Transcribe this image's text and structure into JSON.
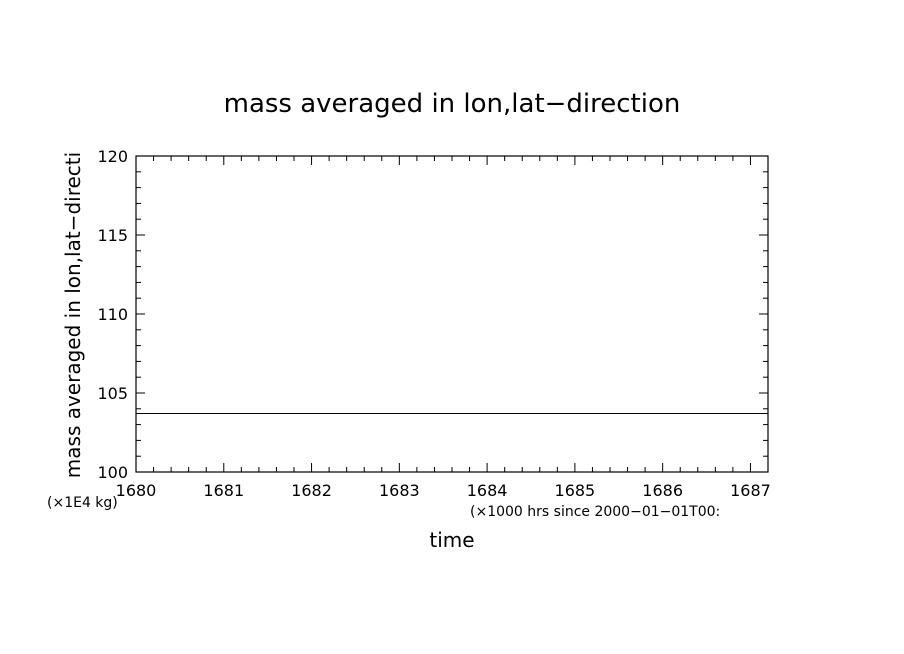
{
  "chart_data": {
    "type": "line",
    "title": "mass averaged in lon,lat−direction",
    "ylabel": "mass averaged in lon,lat−directi",
    "xlabel": "time",
    "y_unit": "(×1E4 kg)",
    "x_unit": "(×1000 hrs  since 2000−01−01T00:",
    "xlim": [
      1680,
      1687.2
    ],
    "ylim": [
      100,
      120
    ],
    "x_ticks": [
      "1680",
      "1681",
      "1682",
      "1683",
      "1684",
      "1685",
      "1686",
      "1687"
    ],
    "y_ticks": [
      "100",
      "105",
      "110",
      "115",
      "120"
    ],
    "grid": false,
    "series": [
      {
        "x": [
          1680,
          1687.2
        ],
        "y": [
          103.7,
          103.7
        ],
        "color": "#000000"
      }
    ]
  }
}
